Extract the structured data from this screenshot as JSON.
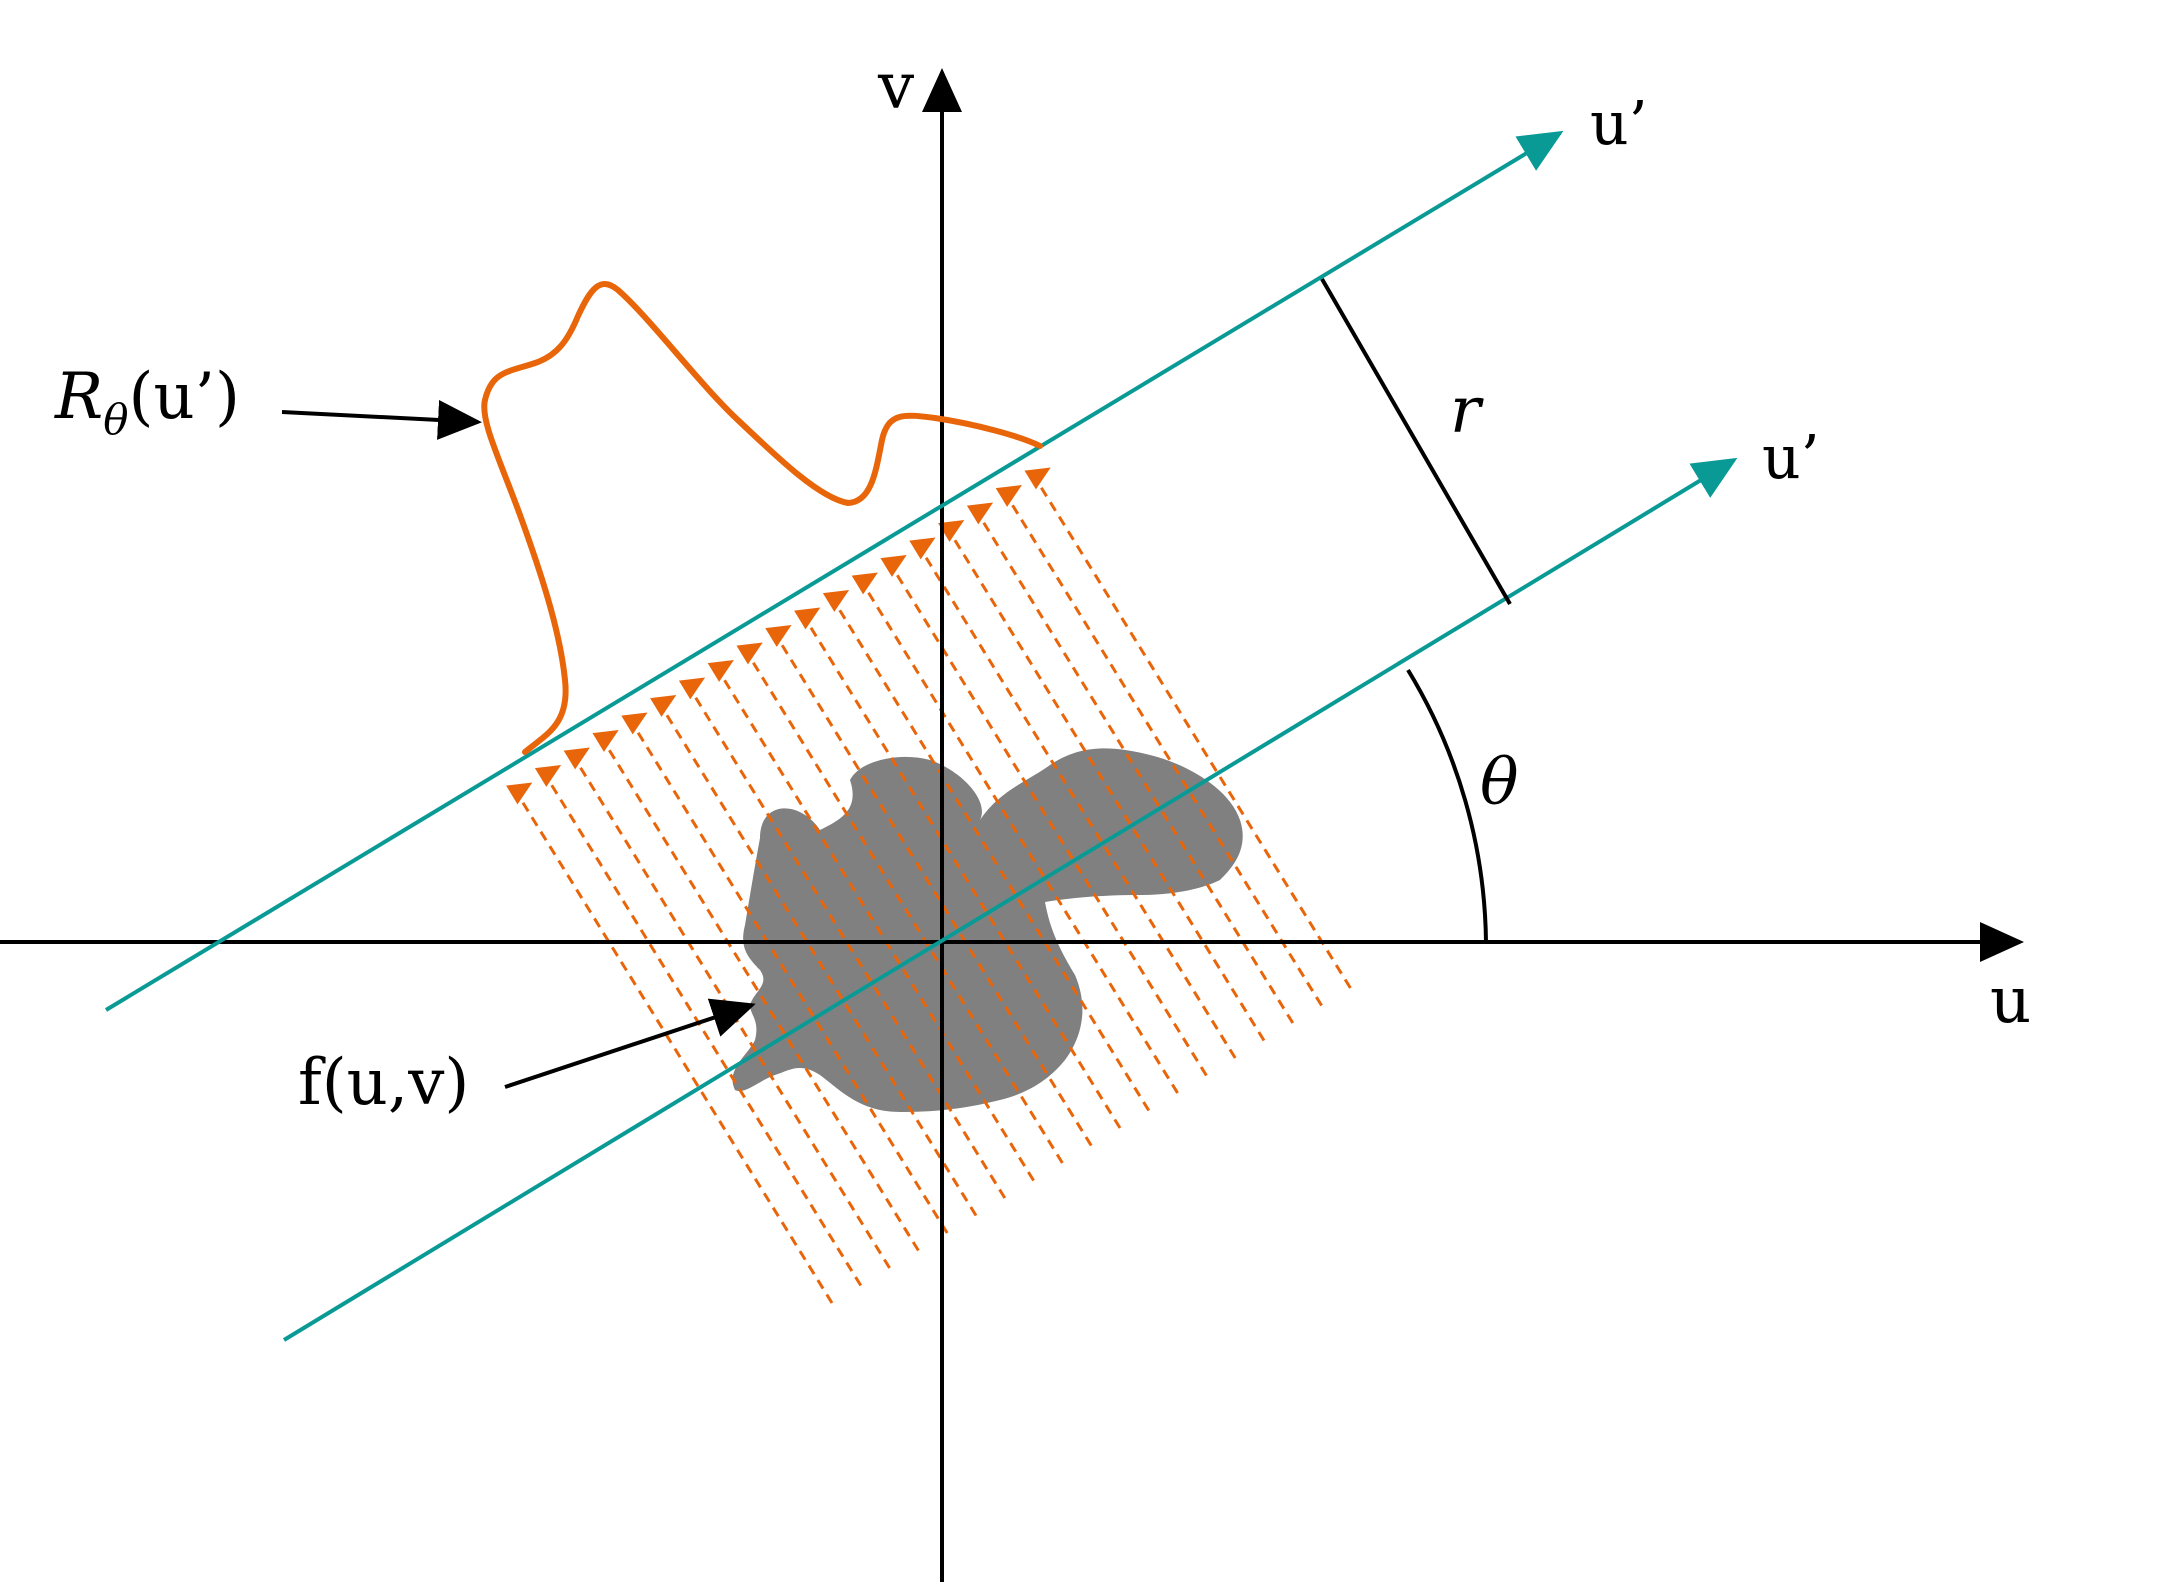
{
  "colors": {
    "axis": "#000000",
    "rotated_axis": "#0a9a96",
    "projection": "#e8650a",
    "object": "#808080"
  },
  "labels": {
    "v_axis": "v",
    "u_axis": "u",
    "u_prime_upper": "u’",
    "u_prime_lower": "u’",
    "r": "r",
    "theta": "θ",
    "projection_symbol": "R",
    "projection_subscript": "θ",
    "projection_arg": "(u’)",
    "object": "f(u,v)"
  }
}
